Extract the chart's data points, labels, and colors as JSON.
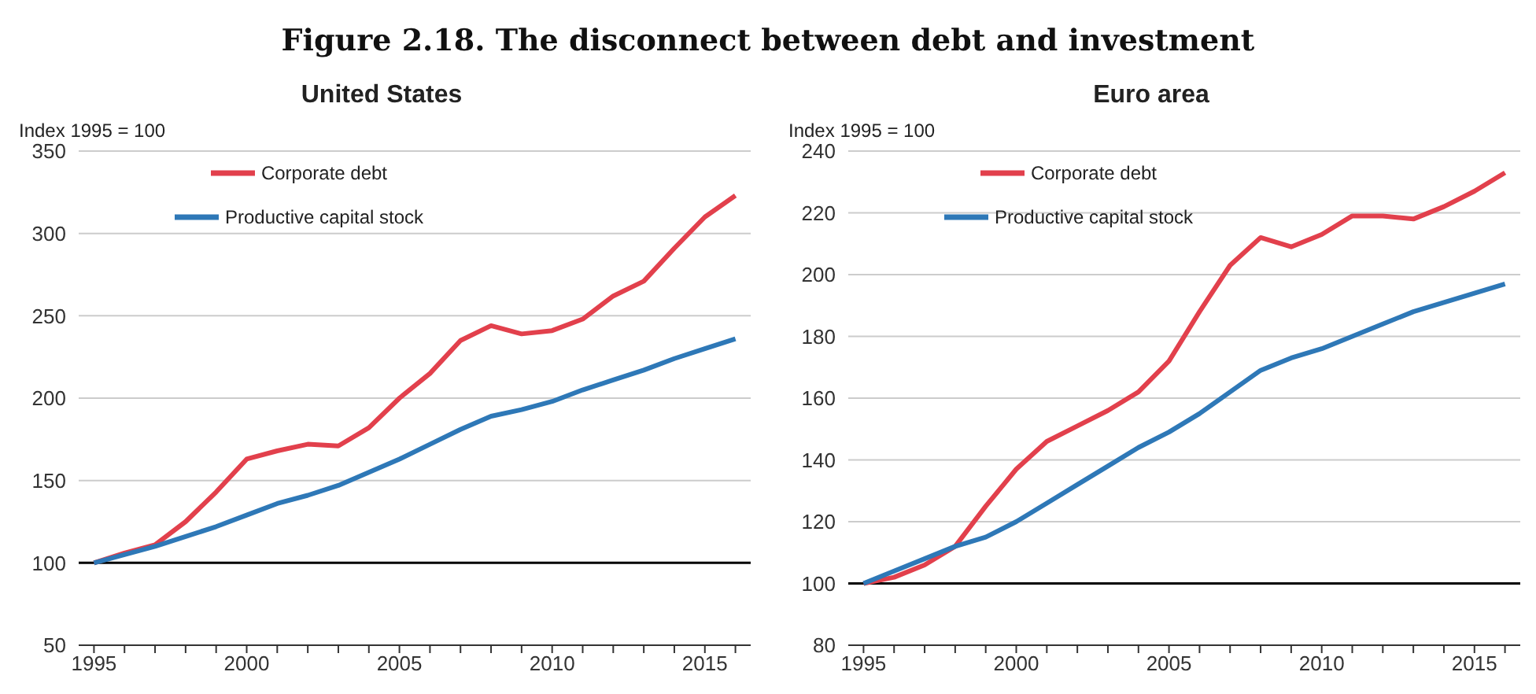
{
  "chart_data": [
    {
      "type": "line",
      "title": "United States",
      "ylabel": "Index 1995 = 100",
      "annotations": [
        "Figure 2.18. The disconnect between debt and investment"
      ],
      "x": [
        1995,
        1996,
        1997,
        1998,
        1999,
        2000,
        2001,
        2002,
        2003,
        2004,
        2005,
        2006,
        2007,
        2008,
        2009,
        2010,
        2011,
        2012,
        2013,
        2014,
        2015,
        2016
      ],
      "series": [
        {
          "name": "Corporate debt",
          "color": "#e2404c",
          "values": [
            100,
            106,
            111,
            125,
            143,
            163,
            168,
            172,
            171,
            182,
            200,
            215,
            235,
            244,
            239,
            241,
            248,
            262,
            271,
            291,
            310,
            323
          ]
        },
        {
          "name": "Productive capital stock",
          "color": "#2e78b7",
          "values": [
            100,
            105,
            110,
            116,
            122,
            129,
            136,
            141,
            147,
            155,
            163,
            172,
            181,
            189,
            193,
            198,
            205,
            211,
            217,
            224,
            230,
            236
          ]
        }
      ],
      "xlim": [
        1994.5,
        2016.5
      ],
      "xticks": [
        1995,
        {
          "value": 1996,
          "label": null
        },
        {
          "value": 1997,
          "label": null
        },
        {
          "value": 1998,
          "label": null
        },
        {
          "value": 1999,
          "label": null
        },
        2000,
        {
          "value": 2001,
          "label": null
        },
        {
          "value": 2002,
          "label": null
        },
        {
          "value": 2003,
          "label": null
        },
        {
          "value": 2004,
          "label": null
        },
        2005,
        {
          "value": 2006,
          "label": null
        },
        {
          "value": 2007,
          "label": null
        },
        {
          "value": 2008,
          "label": null
        },
        {
          "value": 2009,
          "label": null
        },
        2010,
        {
          "value": 2011,
          "label": null
        },
        {
          "value": 2012,
          "label": null
        },
        {
          "value": 2013,
          "label": null
        },
        {
          "value": 2014,
          "label": null
        },
        2015,
        {
          "value": 2016,
          "label": null
        }
      ],
      "ylim": [
        50,
        350
      ],
      "yticks": [
        50,
        100,
        150,
        200,
        250,
        300,
        350
      ],
      "grid": "y",
      "legend": "top left",
      "marker": "none",
      "line_style": "solid",
      "ref_lines": [
        {
          "axis": "y",
          "value": 100,
          "color": "#000000"
        }
      ]
    },
    {
      "type": "line",
      "title": "Euro area",
      "ylabel": "Index 1995 = 100",
      "x": [
        1995,
        1996,
        1997,
        1998,
        1999,
        2000,
        2001,
        2002,
        2003,
        2004,
        2005,
        2006,
        2007,
        2008,
        2009,
        2010,
        2011,
        2012,
        2013,
        2014,
        2015,
        2016
      ],
      "series": [
        {
          "name": "Corporate debt",
          "color": "#e2404c",
          "values": [
            100,
            102,
            106,
            112,
            125,
            137,
            146,
            151,
            156,
            162,
            172,
            188,
            203,
            212,
            209,
            213,
            219,
            219,
            218,
            222,
            227,
            233
          ]
        },
        {
          "name": "Productive capital stock",
          "color": "#2e78b7",
          "values": [
            100,
            104,
            108,
            112,
            115,
            120,
            126,
            132,
            138,
            144,
            149,
            155,
            162,
            169,
            173,
            176,
            180,
            184,
            188,
            191,
            194,
            197
          ]
        }
      ],
      "xlim": [
        1994.5,
        2016.5
      ],
      "xticks": [
        1995,
        {
          "value": 1996,
          "label": null
        },
        {
          "value": 1997,
          "label": null
        },
        {
          "value": 1998,
          "label": null
        },
        {
          "value": 1999,
          "label": null
        },
        2000,
        {
          "value": 2001,
          "label": null
        },
        {
          "value": 2002,
          "label": null
        },
        {
          "value": 2003,
          "label": null
        },
        {
          "value": 2004,
          "label": null
        },
        2005,
        {
          "value": 2006,
          "label": null
        },
        {
          "value": 2007,
          "label": null
        },
        {
          "value": 2008,
          "label": null
        },
        {
          "value": 2009,
          "label": null
        },
        2010,
        {
          "value": 2011,
          "label": null
        },
        {
          "value": 2012,
          "label": null
        },
        {
          "value": 2013,
          "label": null
        },
        {
          "value": 2014,
          "label": null
        },
        2015,
        {
          "value": 2016,
          "label": null
        }
      ],
      "ylim": [
        80,
        240
      ],
      "yticks": [
        80,
        100,
        120,
        140,
        160,
        180,
        200,
        220,
        240
      ],
      "grid": "y",
      "legend": "top left",
      "marker": "none",
      "line_style": "solid",
      "ref_lines": [
        {
          "axis": "y",
          "value": 100,
          "color": "#000000"
        }
      ]
    }
  ]
}
